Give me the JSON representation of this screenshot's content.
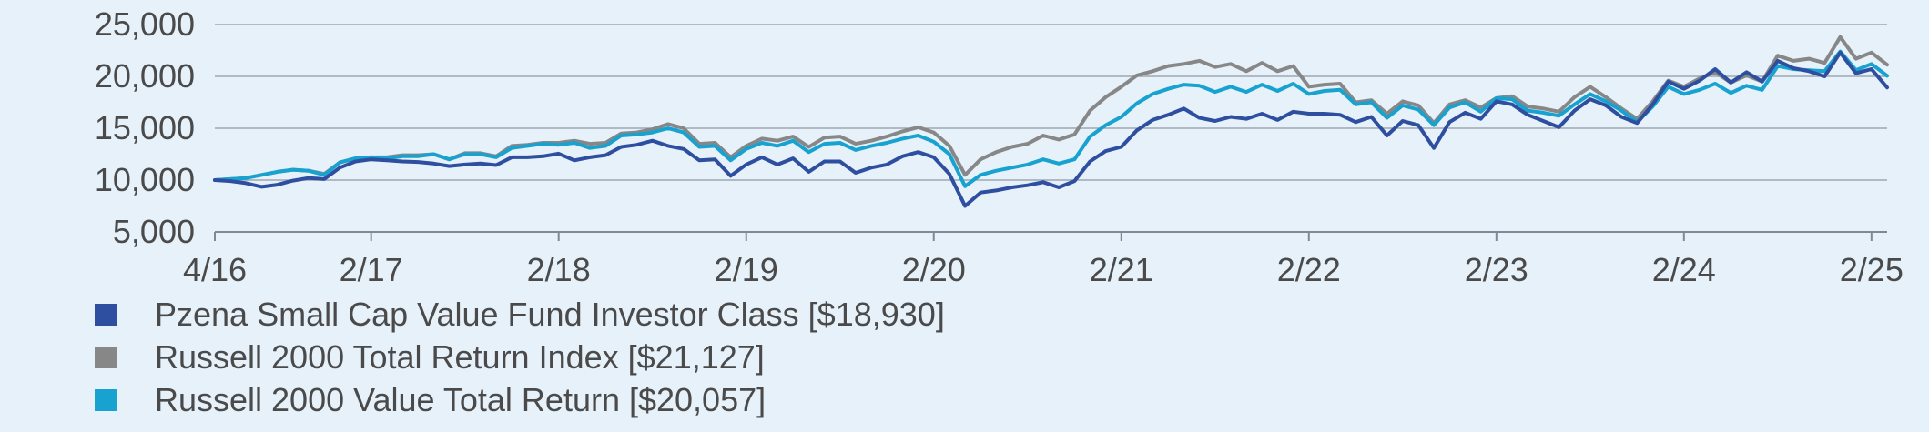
{
  "chart_data": {
    "type": "line",
    "title": "",
    "xlabel": "",
    "ylabel": "",
    "ylim": [
      5000,
      25000
    ],
    "yticks": [
      5000,
      10000,
      15000,
      20000,
      25000
    ],
    "ytick_labels": [
      "5,000",
      "10,000",
      "15,000",
      "20,000",
      "25,000"
    ],
    "xticks": [
      0,
      10,
      22,
      34,
      46,
      58,
      70,
      82,
      94,
      106
    ],
    "xtick_labels": [
      "4/16",
      "2/17",
      "2/18",
      "2/19",
      "2/20",
      "2/21",
      "2/22",
      "2/23",
      "2/24",
      "2/25"
    ],
    "grid": true,
    "legend_position": "bottom",
    "series": [
      {
        "name": "Pzena Small Cap Value Fund Investor Class [$18,930]",
        "color": "#2e4fa0",
        "values": [
          10000,
          9900,
          9700,
          9350,
          9550,
          9950,
          10200,
          10100,
          11200,
          11800,
          12000,
          11900,
          11800,
          11750,
          11600,
          11350,
          11500,
          11600,
          11450,
          12200,
          12200,
          12300,
          12550,
          11900,
          12200,
          12400,
          13200,
          13400,
          13800,
          13300,
          13000,
          11900,
          12000,
          10400,
          11500,
          12200,
          11500,
          12100,
          10800,
          11800,
          11800,
          10700,
          11200,
          11500,
          12300,
          12700,
          12200,
          10600,
          7500,
          8800,
          9000,
          9300,
          9500,
          9800,
          9300,
          9900,
          11800,
          12800,
          13200,
          14800,
          15800,
          16300,
          16900,
          16000,
          15700,
          16100,
          15900,
          16400,
          15800,
          16600,
          16400,
          16400,
          16300,
          15600,
          16100,
          14300,
          15700,
          15300,
          13100,
          15600,
          16500,
          15900,
          17600,
          17300,
          16300,
          15700,
          15100,
          16700,
          17800,
          17200,
          16100,
          15500,
          17300,
          19500,
          18800,
          19600,
          20700,
          19400,
          20400,
          19500,
          21500,
          20800,
          20500,
          20000,
          22300,
          20300,
          20700,
          18930
        ]
      },
      {
        "name": "Russell 2000 Total Return Index [$21,127]",
        "color": "#878787",
        "values": [
          10000,
          10100,
          10200,
          10500,
          10800,
          11000,
          10900,
          10600,
          11700,
          12100,
          12200,
          12200,
          12400,
          12400,
          12500,
          12000,
          12600,
          12600,
          12300,
          13300,
          13400,
          13600,
          13600,
          13800,
          13500,
          13600,
          14500,
          14600,
          14900,
          15400,
          15000,
          13500,
          13600,
          12200,
          13300,
          14000,
          13800,
          14200,
          13200,
          14100,
          14200,
          13500,
          13800,
          14200,
          14700,
          15100,
          14600,
          13300,
          10500,
          12000,
          12700,
          13200,
          13500,
          14300,
          13900,
          14400,
          16700,
          18000,
          19000,
          20100,
          20500,
          21000,
          21200,
          21500,
          20900,
          21200,
          20500,
          21300,
          20500,
          21000,
          19000,
          19200,
          19300,
          17500,
          17700,
          16400,
          17600,
          17200,
          15500,
          17300,
          17700,
          17000,
          17900,
          18100,
          17100,
          16900,
          16600,
          18000,
          19000,
          18000,
          16900,
          15900,
          17600,
          19600,
          19000,
          19800,
          20400,
          19400,
          20100,
          19500,
          22000,
          21500,
          21700,
          21300,
          23800,
          21700,
          22300,
          21127
        ]
      },
      {
        "name": "Russell 2000 Value Total Return [$20,057]",
        "color": "#17a2d0",
        "values": [
          10000,
          10100,
          10200,
          10500,
          10800,
          11000,
          10900,
          10500,
          11700,
          12100,
          12200,
          12100,
          12300,
          12300,
          12500,
          12000,
          12500,
          12500,
          12200,
          13100,
          13300,
          13500,
          13400,
          13600,
          13100,
          13300,
          14300,
          14400,
          14600,
          15000,
          14600,
          13200,
          13300,
          11900,
          13000,
          13600,
          13300,
          13800,
          12700,
          13500,
          13600,
          12900,
          13300,
          13600,
          14000,
          14300,
          13700,
          12500,
          9400,
          10500,
          10900,
          11200,
          11500,
          12000,
          11600,
          12000,
          14200,
          15300,
          16100,
          17400,
          18300,
          18800,
          19200,
          19100,
          18500,
          19000,
          18500,
          19200,
          18600,
          19300,
          18300,
          18600,
          18700,
          17300,
          17500,
          16000,
          17200,
          16800,
          15300,
          17000,
          17500,
          16600,
          17900,
          17800,
          16700,
          16500,
          16200,
          17300,
          18300,
          17600,
          16700,
          15600,
          17100,
          19000,
          18300,
          18700,
          19300,
          18400,
          19100,
          18700,
          21000,
          20700,
          20600,
          20500,
          22400,
          20600,
          21200,
          20057
        ]
      }
    ]
  }
}
